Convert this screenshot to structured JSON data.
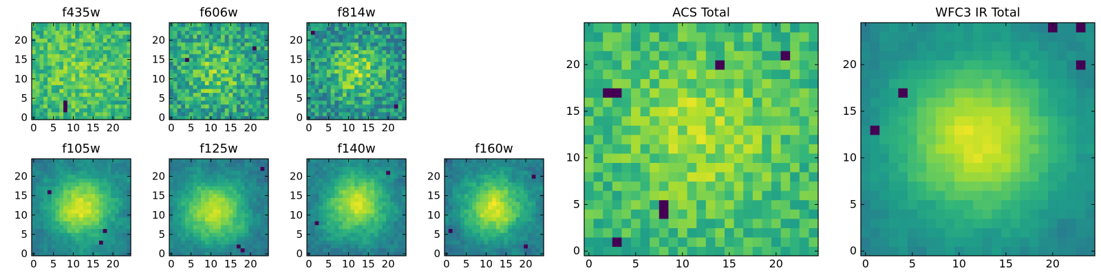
{
  "figure": {
    "title": ""
  },
  "colormap": {
    "name": "viridis",
    "stops": [
      "#440154",
      "#482878",
      "#3e4989",
      "#31688e",
      "#26828e",
      "#1f9e89",
      "#35b779",
      "#6ece58",
      "#b5de2b",
      "#fde725"
    ]
  },
  "chart_data": [
    {
      "type": "heatmap",
      "title": "f435w",
      "grid_size": 25,
      "xticks": [
        0,
        5,
        10,
        15,
        20
      ],
      "yticks": [
        0,
        5,
        10,
        15,
        20
      ],
      "xlim": [
        0,
        24
      ],
      "ylim": [
        0,
        24
      ],
      "style": "noise",
      "seed": 11,
      "cx": 12,
      "cy": 12,
      "sigma": 9,
      "peak": 0.15,
      "base": 0.62,
      "noise": 0.16,
      "dark_pixels": [
        [
          8,
          2
        ],
        [
          8,
          3
        ],
        [
          8,
          4
        ]
      ]
    },
    {
      "type": "heatmap",
      "title": "f606w",
      "grid_size": 25,
      "xticks": [
        0,
        5,
        10,
        15,
        20
      ],
      "yticks": [
        0,
        5,
        10,
        15,
        20
      ],
      "xlim": [
        0,
        24
      ],
      "ylim": [
        0,
        24
      ],
      "style": "noise",
      "seed": 23,
      "cx": 11,
      "cy": 12,
      "sigma": 6,
      "peak": 0.22,
      "base": 0.55,
      "noise": 0.2,
      "dark_pixels": [
        [
          4,
          15
        ],
        [
          21,
          18
        ]
      ]
    },
    {
      "type": "heatmap",
      "title": "f814w",
      "grid_size": 25,
      "xticks": [
        0,
        5,
        10,
        15,
        20
      ],
      "yticks": [
        0,
        5,
        10,
        15,
        20
      ],
      "xlim": [
        0,
        24
      ],
      "ylim": [
        0,
        24
      ],
      "style": "noise",
      "seed": 37,
      "cx": 12,
      "cy": 12,
      "sigma": 5,
      "peak": 0.32,
      "base": 0.5,
      "noise": 0.2,
      "dark_pixels": [
        [
          1,
          22
        ],
        [
          22,
          3
        ]
      ]
    },
    {
      "type": "heatmap",
      "title": "f105w",
      "grid_size": 25,
      "xticks": [
        0,
        5,
        10,
        15,
        20
      ],
      "yticks": [
        0,
        5,
        10,
        15,
        20
      ],
      "xlim": [
        0,
        24
      ],
      "ylim": [
        0,
        24
      ],
      "style": "smooth",
      "seed": 41,
      "cx": 12,
      "cy": 12,
      "sigma": 5.5,
      "peak": 0.55,
      "base": 0.42,
      "noise": 0.12,
      "dark_pixels": [
        [
          4,
          16
        ],
        [
          18,
          6
        ],
        [
          17,
          3
        ]
      ]
    },
    {
      "type": "heatmap",
      "title": "f125w",
      "grid_size": 25,
      "xticks": [
        0,
        5,
        10,
        15,
        20
      ],
      "yticks": [
        0,
        5,
        10,
        15,
        20
      ],
      "xlim": [
        0,
        24
      ],
      "ylim": [
        0,
        24
      ],
      "style": "smooth",
      "seed": 53,
      "cx": 11,
      "cy": 11,
      "sigma": 5.5,
      "peak": 0.5,
      "base": 0.42,
      "noise": 0.12,
      "dark_pixels": [
        [
          17,
          2
        ],
        [
          18,
          1
        ],
        [
          23,
          22
        ]
      ]
    },
    {
      "type": "heatmap",
      "title": "f140w",
      "grid_size": 25,
      "xticks": [
        0,
        5,
        10,
        15,
        20
      ],
      "yticks": [
        0,
        5,
        10,
        15,
        20
      ],
      "xlim": [
        0,
        24
      ],
      "ylim": [
        0,
        24
      ],
      "style": "smooth",
      "seed": 67,
      "cx": 12,
      "cy": 13,
      "sigma": 5.5,
      "peak": 0.52,
      "base": 0.42,
      "noise": 0.13,
      "dark_pixels": [
        [
          20,
          21
        ],
        [
          2,
          8
        ]
      ]
    },
    {
      "type": "heatmap",
      "title": "f160w",
      "grid_size": 25,
      "xticks": [
        0,
        5,
        10,
        15,
        20
      ],
      "yticks": [
        0,
        5,
        10,
        15,
        20
      ],
      "xlim": [
        0,
        24
      ],
      "ylim": [
        0,
        24
      ],
      "style": "smooth",
      "seed": 79,
      "cx": 12,
      "cy": 12,
      "sigma": 5.5,
      "peak": 0.55,
      "base": 0.4,
      "noise": 0.13,
      "dark_pixels": [
        [
          1,
          6
        ],
        [
          22,
          20
        ],
        [
          20,
          2
        ]
      ]
    },
    {
      "type": "heatmap",
      "title": "ACS Total",
      "grid_size": 25,
      "xticks": [
        0,
        5,
        10,
        15,
        20
      ],
      "yticks": [
        0,
        5,
        10,
        15,
        20
      ],
      "xlim": [
        0,
        24
      ],
      "ylim": [
        0,
        24
      ],
      "style": "noise",
      "seed": 97,
      "cx": 12,
      "cy": 13,
      "sigma": 6,
      "peak": 0.2,
      "base": 0.66,
      "noise": 0.13,
      "dark_pixels": [
        [
          2,
          17
        ],
        [
          3,
          17
        ],
        [
          8,
          5
        ],
        [
          8,
          4
        ],
        [
          21,
          21
        ],
        [
          14,
          20
        ],
        [
          3,
          1
        ]
      ]
    },
    {
      "type": "heatmap",
      "title": "WFC3 IR Total",
      "grid_size": 25,
      "xticks": [
        0,
        5,
        10,
        15,
        20
      ],
      "yticks": [
        0,
        5,
        10,
        15,
        20
      ],
      "xlim": [
        0,
        24
      ],
      "ylim": [
        0,
        24
      ],
      "style": "smooth",
      "seed": 113,
      "cx": 12,
      "cy": 12,
      "sigma": 6,
      "peak": 0.5,
      "base": 0.45,
      "noise": 0.07,
      "dark_pixels": [
        [
          4,
          17
        ],
        [
          23,
          24
        ],
        [
          23,
          20
        ],
        [
          20,
          24
        ],
        [
          1,
          13
        ]
      ]
    }
  ]
}
